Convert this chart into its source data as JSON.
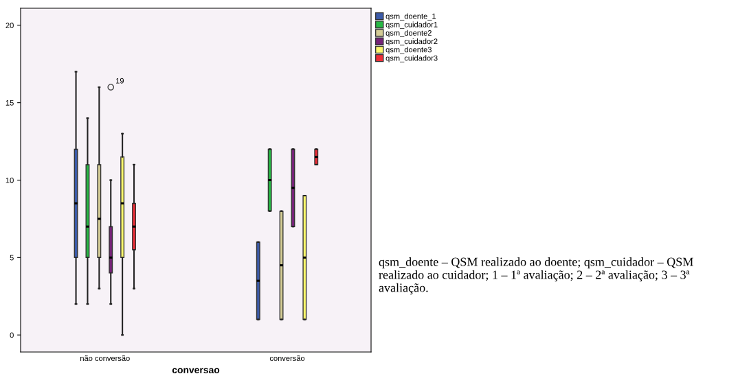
{
  "chart_data": {
    "type": "box",
    "xlabel": "conversao",
    "categories": [
      "não conversão",
      "conversão"
    ],
    "ylim": [
      -1.1,
      21.1
    ],
    "yticks": [
      0,
      5,
      10,
      15,
      20
    ],
    "grid": false,
    "legend": "top right",
    "series": [
      {
        "name": "qsm_doente_1",
        "color": "#3b5aa8",
        "boxes": [
          {
            "low": 2,
            "q1": 5,
            "median": 8.5,
            "q3": 12,
            "high": 17
          },
          {
            "low": 1,
            "q1": 1,
            "median": 3.5,
            "q3": 6,
            "high": 6
          }
        ]
      },
      {
        "name": "qsm_cuidador1",
        "color": "#27b845",
        "boxes": [
          {
            "low": 2,
            "q1": 5,
            "median": 7,
            "q3": 11,
            "high": 14
          },
          {
            "low": 8,
            "q1": 8,
            "median": 10,
            "q3": 12,
            "high": 12
          }
        ]
      },
      {
        "name": "qsm_doente2",
        "color": "#d5cd96",
        "boxes": [
          {
            "low": 3,
            "q1": 5,
            "median": 7.5,
            "q3": 11,
            "high": 16
          },
          {
            "low": 1,
            "q1": 1,
            "median": 4.5,
            "q3": 8,
            "high": 8
          }
        ]
      },
      {
        "name": "qsm_cuidador2",
        "color": "#762378",
        "boxes": [
          {
            "low": 2,
            "q1": 4,
            "median": 5,
            "q3": 7,
            "high": 10,
            "outliers": [
              16
            ]
          },
          {
            "low": 7,
            "q1": 7,
            "median": 9.5,
            "q3": 12,
            "high": 12
          }
        ]
      },
      {
        "name": "qsm_doente3",
        "color": "#fcf86e",
        "boxes": [
          {
            "low": 0,
            "q1": 5,
            "median": 8.5,
            "q3": 11.5,
            "high": 13
          },
          {
            "low": 1,
            "q1": 1,
            "median": 5,
            "q3": 9,
            "high": 9
          }
        ]
      },
      {
        "name": "qsm_cuidador3",
        "color": "#ee2e38",
        "boxes": [
          {
            "low": 3,
            "q1": 5.5,
            "median": 7,
            "q3": 8.5,
            "high": 11
          },
          {
            "low": 11,
            "q1": 11,
            "median": 11.5,
            "q3": 12,
            "high": 12
          }
        ]
      }
    ],
    "annotations": [
      "19",
      "qsm_doente – QSM realizado ao doente; qsm_cuidador – QSM realizado ao cuidador; 1 – 1ª avaliação; 2 – 2ª avaliação; 3 – 3ª avaliação."
    ]
  }
}
